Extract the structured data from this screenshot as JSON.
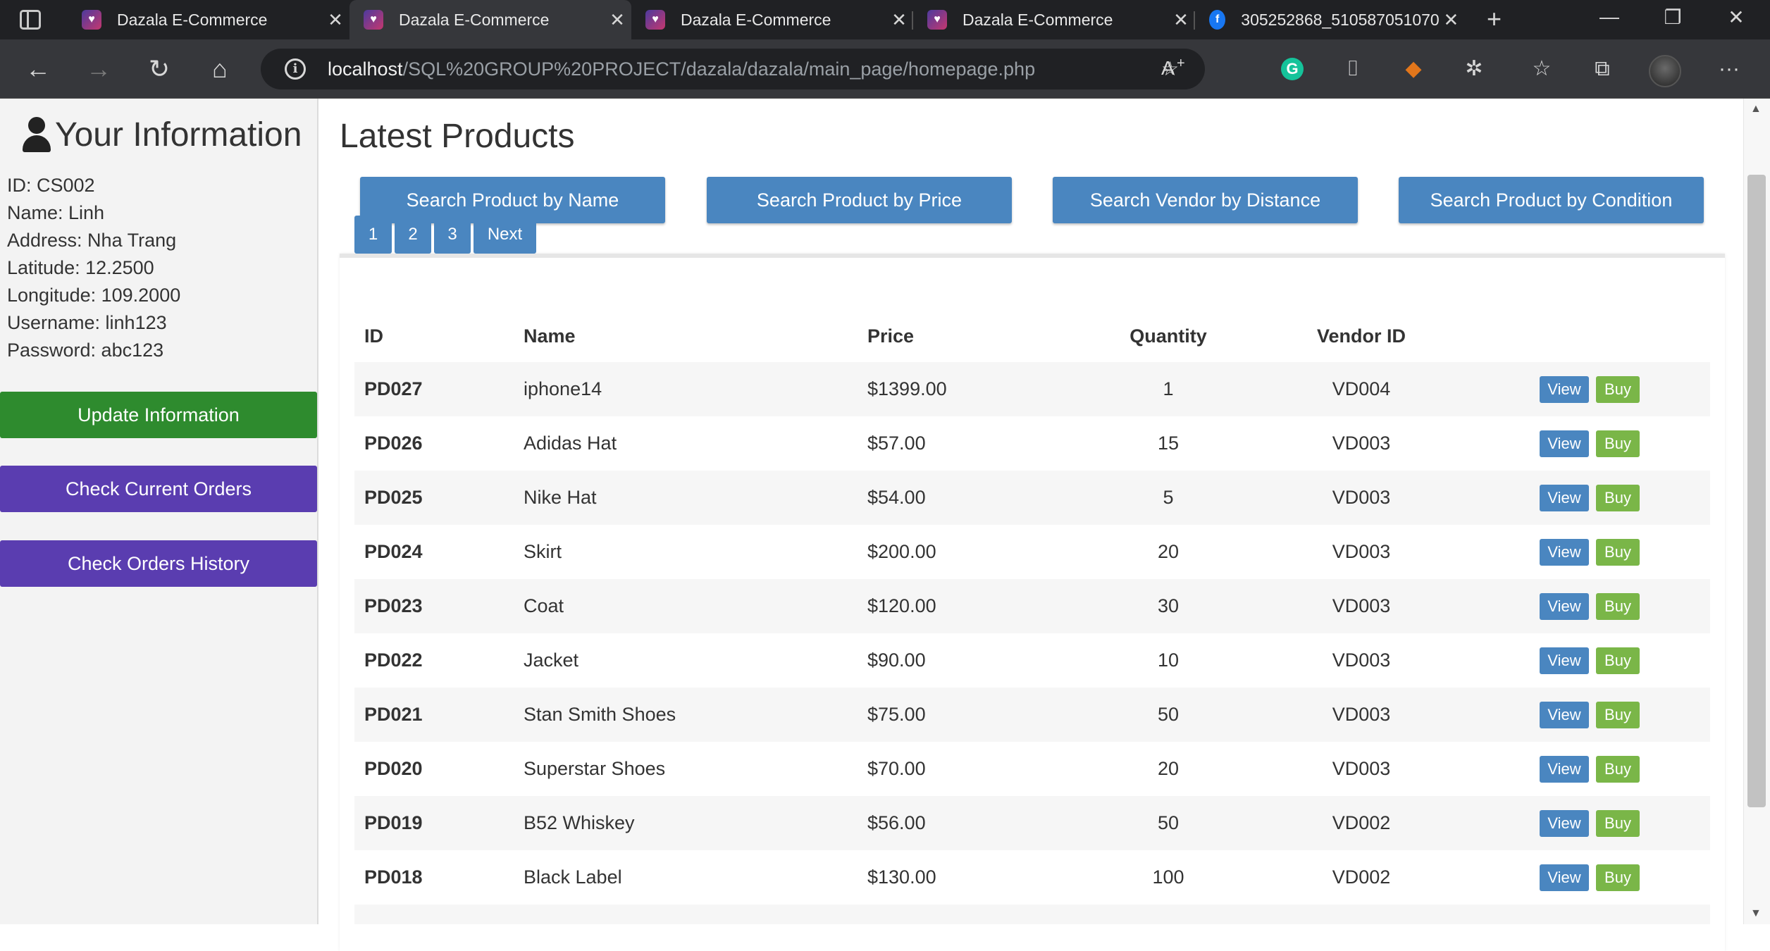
{
  "browser": {
    "tabs": [
      {
        "title": "Dazala E-Commerce",
        "icon": "dazala-favicon",
        "active": false
      },
      {
        "title": "Dazala E-Commerce",
        "icon": "dazala-favicon",
        "active": true
      },
      {
        "title": "Dazala E-Commerce",
        "icon": "dazala-favicon",
        "active": false
      },
      {
        "title": "Dazala E-Commerce",
        "icon": "dazala-favicon",
        "active": false
      },
      {
        "title": "305252868_510587051070",
        "icon": "facebook-favicon",
        "active": false
      }
    ],
    "url_host": "localhost",
    "url_path": "/SQL%20GROUP%20PROJECT/dazala/dazala/main_page/homepage.php",
    "icons": {
      "back": "←",
      "forward": "→",
      "reload": "↻",
      "home": "⌂",
      "close": "✕",
      "new_tab": "+",
      "minimize": "—",
      "restore": "❐",
      "read_aloud": "A",
      "favorite": "☆",
      "grammarly": "G",
      "camera": "⌷",
      "extensions": "✲",
      "favorites_bar": "☆",
      "collections": "⧉",
      "more": "···",
      "info": "i",
      "fox": "◆"
    }
  },
  "sidebar": {
    "title": "Your Information",
    "info": [
      "ID: CS002",
      "Name: Linh",
      "Address: Nha Trang",
      "Latitude: 12.2500",
      "Longitude: 109.2000",
      "Username: linh123",
      "Password: abc123"
    ],
    "buttons": {
      "update": "Update Information",
      "current": "Check Current Orders",
      "history": "Check Orders History"
    },
    "colors": {
      "update": "#2e8b2e",
      "orders": "#5a3db0"
    }
  },
  "main": {
    "title": "Latest Products",
    "search_buttons": [
      "Search Product by Name",
      "Search Product by Price",
      "Search Vendor by Distance",
      "Search Product by Condition"
    ],
    "pagination": [
      "1",
      "2",
      "3",
      "Next"
    ],
    "table": {
      "headers": [
        "ID",
        "Name",
        "Price",
        "Quantity",
        "Vendor ID"
      ],
      "view_label": "View",
      "buy_label": "Buy",
      "rows": [
        {
          "id": "PD027",
          "name": "iphone14",
          "price": "$1399.00",
          "quantity": "1",
          "vendor": "VD004"
        },
        {
          "id": "PD026",
          "name": "Adidas Hat",
          "price": "$57.00",
          "quantity": "15",
          "vendor": "VD003"
        },
        {
          "id": "PD025",
          "name": "Nike Hat",
          "price": "$54.00",
          "quantity": "5",
          "vendor": "VD003"
        },
        {
          "id": "PD024",
          "name": "Skirt",
          "price": "$200.00",
          "quantity": "20",
          "vendor": "VD003"
        },
        {
          "id": "PD023",
          "name": "Coat",
          "price": "$120.00",
          "quantity": "30",
          "vendor": "VD003"
        },
        {
          "id": "PD022",
          "name": "Jacket",
          "price": "$90.00",
          "quantity": "10",
          "vendor": "VD003"
        },
        {
          "id": "PD021",
          "name": "Stan Smith Shoes",
          "price": "$75.00",
          "quantity": "50",
          "vendor": "VD003"
        },
        {
          "id": "PD020",
          "name": "Superstar Shoes",
          "price": "$70.00",
          "quantity": "20",
          "vendor": "VD003"
        },
        {
          "id": "PD019",
          "name": "B52 Whiskey",
          "price": "$56.00",
          "quantity": "50",
          "vendor": "VD002"
        },
        {
          "id": "PD018",
          "name": "Black Label",
          "price": "$130.00",
          "quantity": "100",
          "vendor": "VD002"
        }
      ]
    },
    "colors": {
      "primary": "#4a86c0",
      "buy": "#7ab648"
    }
  }
}
